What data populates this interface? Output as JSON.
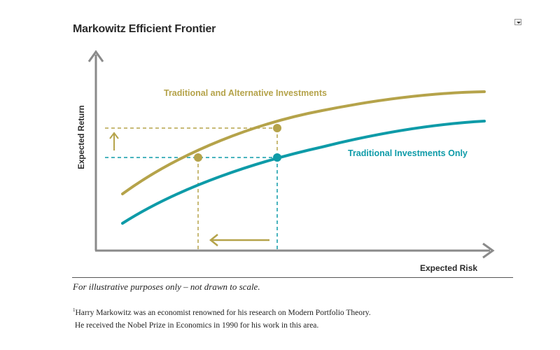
{
  "title": "Markowitz Efficient Frontier",
  "labels": {
    "y_axis": "Expected Return",
    "x_axis": "Expected Risk",
    "upper_curve": "Traditional and Alternative Investments",
    "lower_curve": "Traditional Investments Only"
  },
  "colors": {
    "upper_curve": "#b5a34a",
    "lower_curve": "#0e9ba8",
    "axis": "#8a8a8a"
  },
  "note": "For illustrative purposes only – not drawn to scale.",
  "footnote": {
    "marker": "1",
    "line1": "Harry Markowitz was an economist renowned for his research on Modern Portfolio Theory.",
    "line2": "He received the Nobel Prize in Economics in 1990 for his work in this area."
  }
}
